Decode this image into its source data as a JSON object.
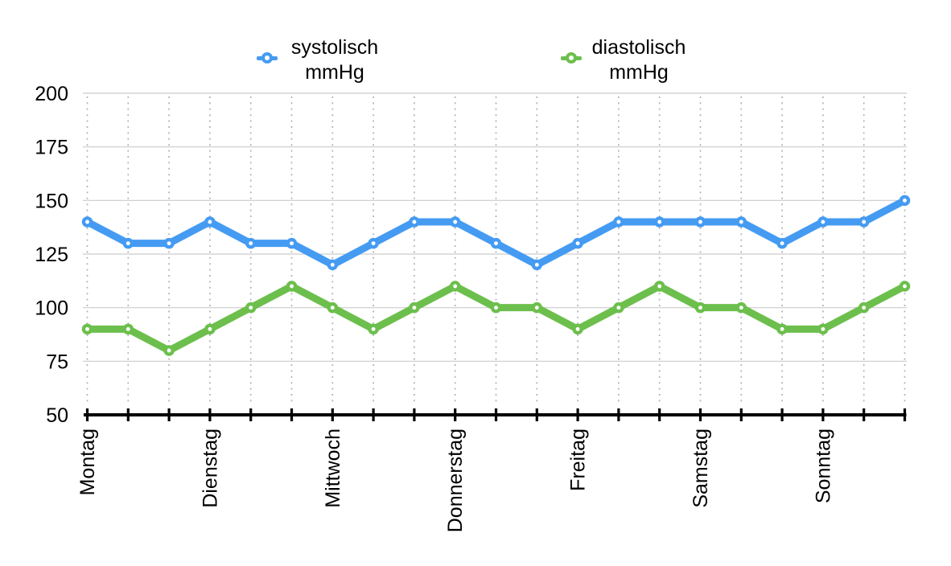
{
  "chart_data": {
    "type": "line",
    "x_tick_labels": [
      "Montag",
      "",
      "",
      "Dienstag",
      "",
      "",
      "Mittwoch",
      "",
      "",
      "Donnerstag",
      "",
      "",
      "Freitag",
      "",
      "",
      "Samstag",
      "",
      "",
      "Sonntag",
      "",
      ""
    ],
    "series": [
      {
        "name": "systolisch",
        "unit": "mmHg",
        "color": "#459bf2",
        "values": [
          140,
          130,
          130,
          140,
          130,
          130,
          120,
          130,
          140,
          140,
          130,
          120,
          130,
          140,
          140,
          140,
          140,
          130,
          140,
          140,
          150
        ]
      },
      {
        "name": "diastolisch",
        "unit": "mmHg",
        "color": "#6cbf4c",
        "values": [
          90,
          90,
          80,
          90,
          100,
          110,
          100,
          90,
          100,
          110,
          100,
          100,
          90,
          100,
          110,
          100,
          100,
          90,
          90,
          100,
          110
        ]
      }
    ],
    "ylim": [
      50,
      200
    ],
    "yticks": [
      50,
      75,
      100,
      125,
      150,
      175,
      200
    ],
    "grid": {
      "horizontal": "solid",
      "vertical": "dotted"
    },
    "legend_position": "top",
    "axis_color": "#000000",
    "gridline_color": "#cccccc",
    "dotted_gridline_color": "#b3b3b3",
    "background": "#ffffff"
  }
}
